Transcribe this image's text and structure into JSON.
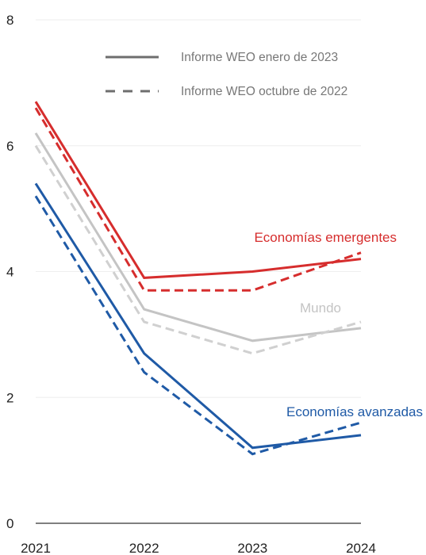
{
  "chart_data": {
    "type": "line",
    "x": [
      "2021",
      "2022",
      "2023",
      "2024"
    ],
    "ylim": [
      0,
      8
    ],
    "yticks": [
      0,
      2,
      4,
      6,
      8
    ],
    "grid": true,
    "legend_placement": "top",
    "legend": [
      {
        "label": "Informe WEO enero de 2023",
        "style": "solid"
      },
      {
        "label": "Informe WEO octubre de 2022",
        "style": "dashed"
      }
    ],
    "series": [
      {
        "name": "Economías emergentes",
        "color": "#d62d2d",
        "style": "solid",
        "values": [
          6.7,
          3.9,
          4.0,
          4.2
        ]
      },
      {
        "name": "Economías emergentes",
        "color": "#d62d2d",
        "style": "dashed",
        "values": [
          6.6,
          3.7,
          3.7,
          4.3
        ]
      },
      {
        "name": "Mundo",
        "color": "#c4c4c4",
        "style": "solid",
        "values": [
          6.2,
          3.4,
          2.9,
          3.1
        ]
      },
      {
        "name": "Mundo",
        "color": "#d0d0d0",
        "style": "dashed",
        "values": [
          6.0,
          3.2,
          2.7,
          3.2
        ]
      },
      {
        "name": "Economías avanzadas",
        "color": "#1f5aa6",
        "style": "solid",
        "values": [
          5.4,
          2.7,
          1.2,
          1.4
        ]
      },
      {
        "name": "Economías avanzadas",
        "color": "#1f5aa6",
        "style": "dashed",
        "values": [
          5.2,
          2.4,
          1.1,
          1.6
        ]
      }
    ],
    "labels": [
      {
        "text": "Economías emergentes",
        "color": "#d62d2d"
      },
      {
        "text": "Mundo",
        "color": "#c4c4c4"
      },
      {
        "text": "Economías avanzadas",
        "color": "#1f5aa6"
      }
    ]
  }
}
